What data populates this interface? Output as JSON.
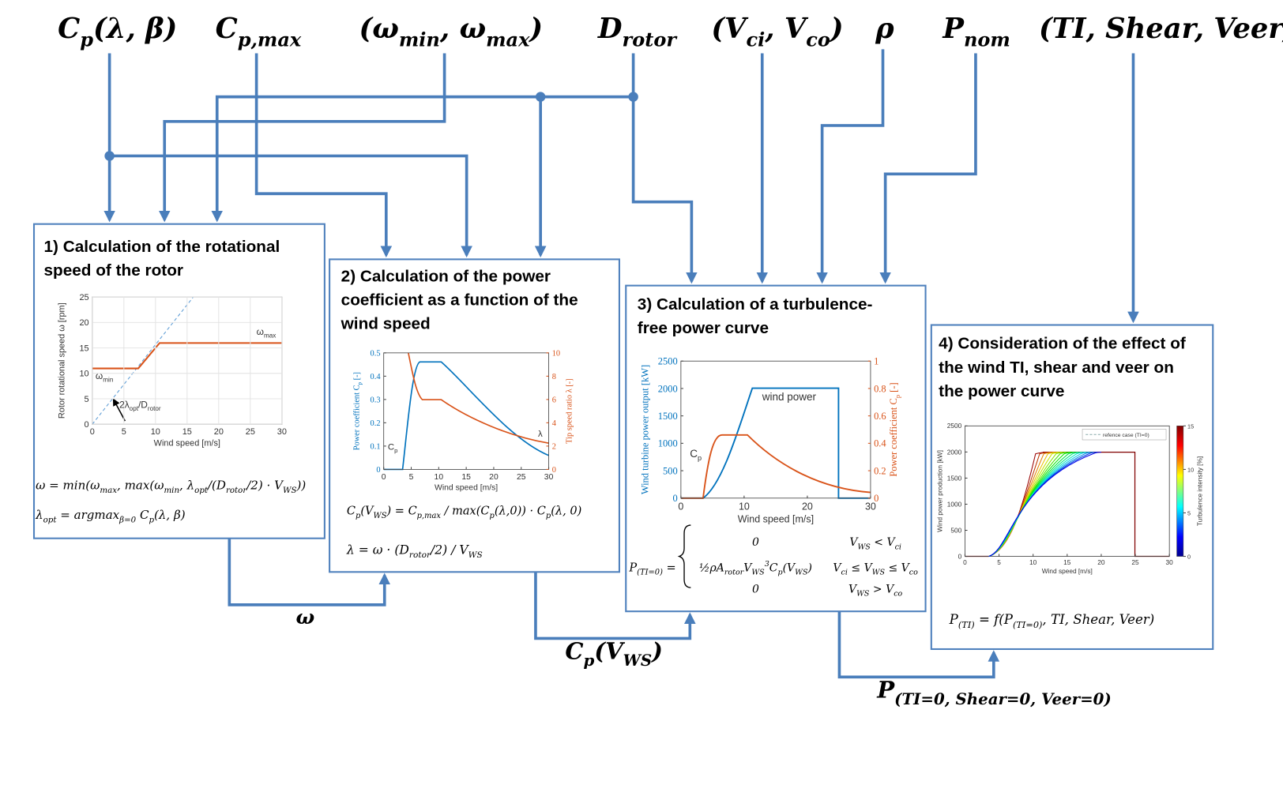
{
  "inputs": [
    [
      {
        "t": "C"
      },
      {
        "sub": "p"
      },
      {
        "t": "(λ, β)"
      }
    ],
    [
      {
        "t": "C"
      },
      {
        "sub": "p,max"
      }
    ],
    [
      {
        "t": "(ω"
      },
      {
        "sub": "min"
      },
      {
        "t": ", ω"
      },
      {
        "sub": "max"
      },
      {
        "t": ")"
      }
    ],
    [
      {
        "t": "D"
      },
      {
        "sub": "rotor"
      }
    ],
    [
      {
        "t": "(V"
      },
      {
        "sub": "ci"
      },
      {
        "t": ", V"
      },
      {
        "sub": "co"
      },
      {
        "t": ")"
      }
    ],
    [
      {
        "t": "ρ"
      }
    ],
    [
      {
        "t": "P"
      },
      {
        "sub": "nom"
      }
    ],
    [
      {
        "t": "(TI, Shear, Veer)"
      }
    ]
  ],
  "boxes": [
    {
      "title": [
        "1) Calculation  of the rotational",
        "speed of the rotor"
      ],
      "chart": {
        "xlim": [
          0,
          30
        ],
        "ylim": [
          0,
          25
        ],
        "xticks": [
          0,
          5,
          10,
          15,
          20,
          25,
          30
        ],
        "yticks": [
          0,
          5,
          10,
          15,
          20,
          25
        ],
        "grid": true,
        "xlabel": [
          {
            "t": "Wind speed [m/s]"
          }
        ],
        "ylabel": [
          {
            "t": "Rotor rotational speed ω [rpm]"
          }
        ],
        "annotations": [
          [
            {
              "t": "ω"
            },
            {
              "sub": "max"
            }
          ],
          [
            {
              "t": "ω"
            },
            {
              "sub": "min"
            }
          ],
          [
            {
              "t": "2λ"
            },
            {
              "sub": "opt"
            },
            {
              "t": "/D"
            },
            {
              "sub": "rotor"
            }
          ]
        ]
      },
      "equations": [
        [
          {
            "t": "ω = min(ω"
          },
          {
            "sub": "max"
          },
          {
            "t": ", max(ω"
          },
          {
            "sub": "min"
          },
          {
            "t": ", λ"
          },
          {
            "sub": "opt"
          },
          {
            "t": "/(D"
          },
          {
            "sub": "rotor"
          },
          {
            "t": "/2) · V"
          },
          {
            "sub": "WS"
          },
          {
            "t": "))"
          }
        ],
        [
          {
            "t": "λ"
          },
          {
            "sub": "opt"
          },
          {
            "t": " = argmax"
          },
          {
            "sub": "β=0"
          },
          {
            "t": " C"
          },
          {
            "sub": "p"
          },
          {
            "t": "(λ, β)"
          }
        ]
      ]
    },
    {
      "title": [
        "2) Calculation  of the power",
        "coefficient as a function  of the",
        "wind speed"
      ],
      "chart": {
        "xlim": [
          0,
          30
        ],
        "ylim": [
          0,
          0.5
        ],
        "y2lim": [
          0,
          10
        ],
        "xticks": [
          0,
          5,
          10,
          15,
          20,
          25,
          30
        ],
        "yticks": [
          0,
          0.1,
          0.2,
          0.3,
          0.4,
          0.5
        ],
        "y2ticks": [
          0,
          2,
          4,
          6,
          8,
          10
        ],
        "xlabel": [
          {
            "t": "Wind speed [m/s]"
          }
        ],
        "ylabel": [
          {
            "t": "Power coefficient C"
          },
          {
            "sub": "p"
          },
          {
            "t": " [-]"
          }
        ],
        "y2label": [
          {
            "t": "Tip speed ratio λ [-]"
          }
        ],
        "annotations": [
          [
            {
              "t": "C"
            },
            {
              "sub": "p"
            }
          ],
          [
            {
              "t": "λ"
            }
          ]
        ]
      },
      "equations": [
        [
          {
            "t": "C"
          },
          {
            "sub": "p"
          },
          {
            "t": "(V"
          },
          {
            "sub": "WS"
          },
          {
            "t": ") = C"
          },
          {
            "sub": "p,max"
          },
          {
            "t": " / max(C"
          },
          {
            "sub": "p"
          },
          {
            "t": "(λ,0)) · C"
          },
          {
            "sub": "p"
          },
          {
            "t": "(λ, 0)"
          }
        ],
        [
          {
            "t": "λ = ω · (D"
          },
          {
            "sub": "rotor"
          },
          {
            "t": "/2) / V"
          },
          {
            "sub": "WS"
          }
        ]
      ]
    },
    {
      "title": [
        "3) Calculation  of a turbulence-",
        "free power curve"
      ],
      "chart": {
        "xlim": [
          0,
          30
        ],
        "ylim": [
          0,
          2500
        ],
        "y2lim": [
          0,
          1
        ],
        "xticks": [
          0,
          10,
          20,
          30
        ],
        "yticks": [
          0,
          500,
          1000,
          1500,
          2000,
          2500
        ],
        "y2ticks": [
          0,
          0.2,
          0.4,
          0.6,
          0.8,
          1
        ],
        "xlabel": [
          {
            "t": "Wind speed [m/s]"
          }
        ],
        "ylabel": [
          {
            "t": "Wind turbine power output [kW]"
          }
        ],
        "y2label": [
          {
            "t": "Power coefficient C"
          },
          {
            "sub": "p"
          },
          {
            "t": " [-]"
          }
        ],
        "annotations": [
          [
            {
              "t": "wind power"
            }
          ],
          [
            {
              "t": "C"
            },
            {
              "sub": "p"
            }
          ]
        ]
      },
      "equation": {
        "lhs": [
          {
            "t": "P"
          },
          {
            "sub": "(TI=0)"
          },
          {
            "t": " ="
          }
        ],
        "cases": [
          {
            "expr": [
              {
                "t": "0"
              }
            ],
            "cond": [
              {
                "t": "V"
              },
              {
                "sub": "WS"
              },
              {
                "t": " < V"
              },
              {
                "sub": "ci"
              }
            ]
          },
          {
            "expr": [
              {
                "t": "½ρA"
              },
              {
                "sub": "rotor"
              },
              {
                "t": "V"
              },
              {
                "sub": "WS"
              },
              {
                "sup": "3"
              },
              {
                "t": "C"
              },
              {
                "sub": "p"
              },
              {
                "t": "(V"
              },
              {
                "sub": "WS"
              },
              {
                "t": ")"
              }
            ],
            "cond": [
              {
                "t": "V"
              },
              {
                "sub": "ci"
              },
              {
                "t": " ≤ V"
              },
              {
                "sub": "WS"
              },
              {
                "t": " ≤ V"
              },
              {
                "sub": "co"
              }
            ]
          },
          {
            "expr": [
              {
                "t": "0"
              }
            ],
            "cond": [
              {
                "t": "V"
              },
              {
                "sub": "WS"
              },
              {
                "t": " > V"
              },
              {
                "sub": "co"
              }
            ]
          }
        ]
      }
    },
    {
      "title": [
        "4) Consideration  of the effect of",
        "the wind TI, shear and veer on",
        "the  power curve"
      ],
      "chart": {
        "xlim": [
          0,
          30
        ],
        "ylim": [
          0,
          2500
        ],
        "xticks": [
          0,
          5,
          10,
          15,
          20,
          25,
          30
        ],
        "yticks": [
          0,
          500,
          1000,
          1500,
          2000,
          2500
        ],
        "xlabel": [
          {
            "t": "Wind speed [m/s]"
          }
        ],
        "ylabel": [
          {
            "t": "Wind power production [kW]"
          }
        ],
        "clim": [
          0,
          15
        ],
        "cticks": [
          0,
          5,
          10,
          15
        ],
        "clabel": [
          {
            "t": "Turbulence intensity [%]"
          }
        ],
        "legend": "refence case (TI=0)"
      },
      "equations": [
        [
          {
            "t": "P"
          },
          {
            "sub": "(TI)"
          },
          {
            "t": " = f(P"
          },
          {
            "sub": "(TI=0)"
          },
          {
            "t": ", TI, Shear, Veer)"
          }
        ]
      ]
    }
  ],
  "outputs": [
    [
      {
        "t": "ω"
      }
    ],
    [
      {
        "t": "C"
      },
      {
        "sub": "p"
      },
      {
        "t": "(V"
      },
      {
        "sub": "WS"
      },
      {
        "t": ")"
      }
    ],
    [
      {
        "t": "P"
      },
      {
        "sub": "(TI=0, Shear=0, Veer=0)"
      }
    ]
  ]
}
